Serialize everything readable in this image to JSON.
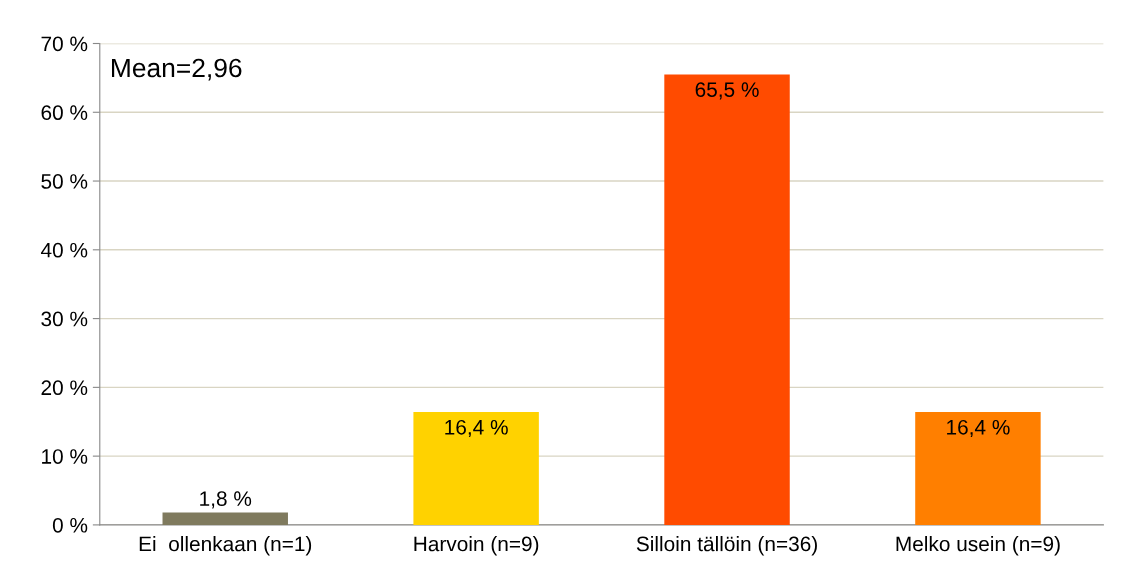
{
  "chart_data": {
    "type": "bar",
    "categories": [
      "Ei  ollenkaan (n=1)",
      "Harvoin (n=9)",
      "Silloin tällöin (n=36)",
      "Melko usein (n=9)"
    ],
    "values": [
      1.8,
      16.4,
      65.5,
      16.4
    ],
    "colors": [
      "#7f7a5e",
      "#ffd200",
      "#ff4b00",
      "#ff7f00"
    ],
    "value_labels": [
      "1,8 %",
      "16,4 %",
      "65,5 %",
      "16,4 %"
    ],
    "ylim": [
      0,
      70
    ],
    "yticks": [
      {
        "value": 0,
        "label": "0 %"
      },
      {
        "value": 10,
        "label": "10 %"
      },
      {
        "value": 20,
        "label": "20 %"
      },
      {
        "value": 30,
        "label": "30 %"
      },
      {
        "value": 40,
        "label": "40 %"
      },
      {
        "value": 50,
        "label": "50 %"
      },
      {
        "value": 60,
        "label": "60 %"
      },
      {
        "value": 70,
        "label": "70 %"
      }
    ],
    "grid": "y",
    "annotations": [
      "Mean=2,96"
    ]
  }
}
